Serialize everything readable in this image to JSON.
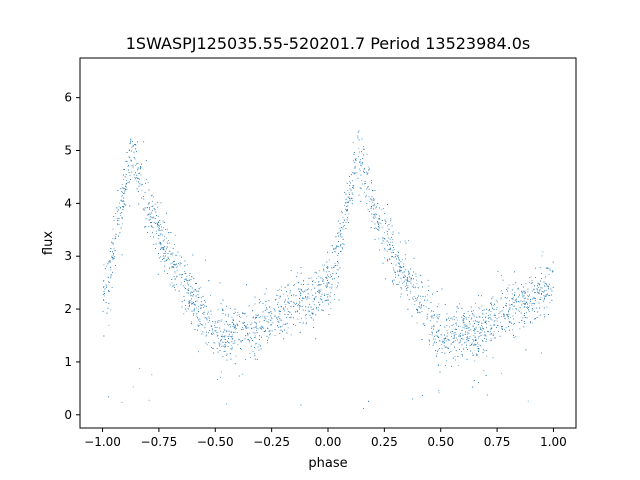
{
  "chart_data": {
    "type": "scatter",
    "title": "1SWASPJ125035.55-520201.7 Period 13523984.0s",
    "xlabel": "phase",
    "ylabel": "flux",
    "xlim": [
      -1.1,
      1.1
    ],
    "ylim": [
      -0.25,
      6.75
    ],
    "x_ticks": [
      -1.0,
      -0.75,
      -0.5,
      -0.25,
      0.0,
      0.25,
      0.5,
      0.75,
      1.0
    ],
    "x_tick_labels": [
      "−1.00",
      "−0.75",
      "−0.50",
      "−0.25",
      "0.00",
      "0.25",
      "0.50",
      "0.75",
      "1.00"
    ],
    "y_ticks": [
      0,
      1,
      2,
      3,
      4,
      5,
      6
    ],
    "y_tick_labels": [
      "0",
      "1",
      "2",
      "3",
      "4",
      "5",
      "6"
    ],
    "grid": false,
    "point_color": "#1f77b4",
    "trend": {
      "x": [
        0.0,
        0.03,
        0.06,
        0.1,
        0.13,
        0.16,
        0.2,
        0.25,
        0.3,
        0.35,
        0.4,
        0.45,
        0.5,
        0.55,
        0.6,
        0.65,
        0.7,
        0.75,
        0.8,
        0.85,
        0.9,
        0.95,
        1.0
      ],
      "y": [
        2.3,
        2.7,
        3.4,
        4.3,
        5.0,
        4.6,
        3.9,
        3.5,
        2.9,
        2.6,
        2.2,
        1.8,
        1.5,
        1.5,
        1.6,
        1.5,
        1.7,
        1.9,
        2.0,
        2.1,
        2.2,
        2.3,
        2.5
      ]
    }
  }
}
